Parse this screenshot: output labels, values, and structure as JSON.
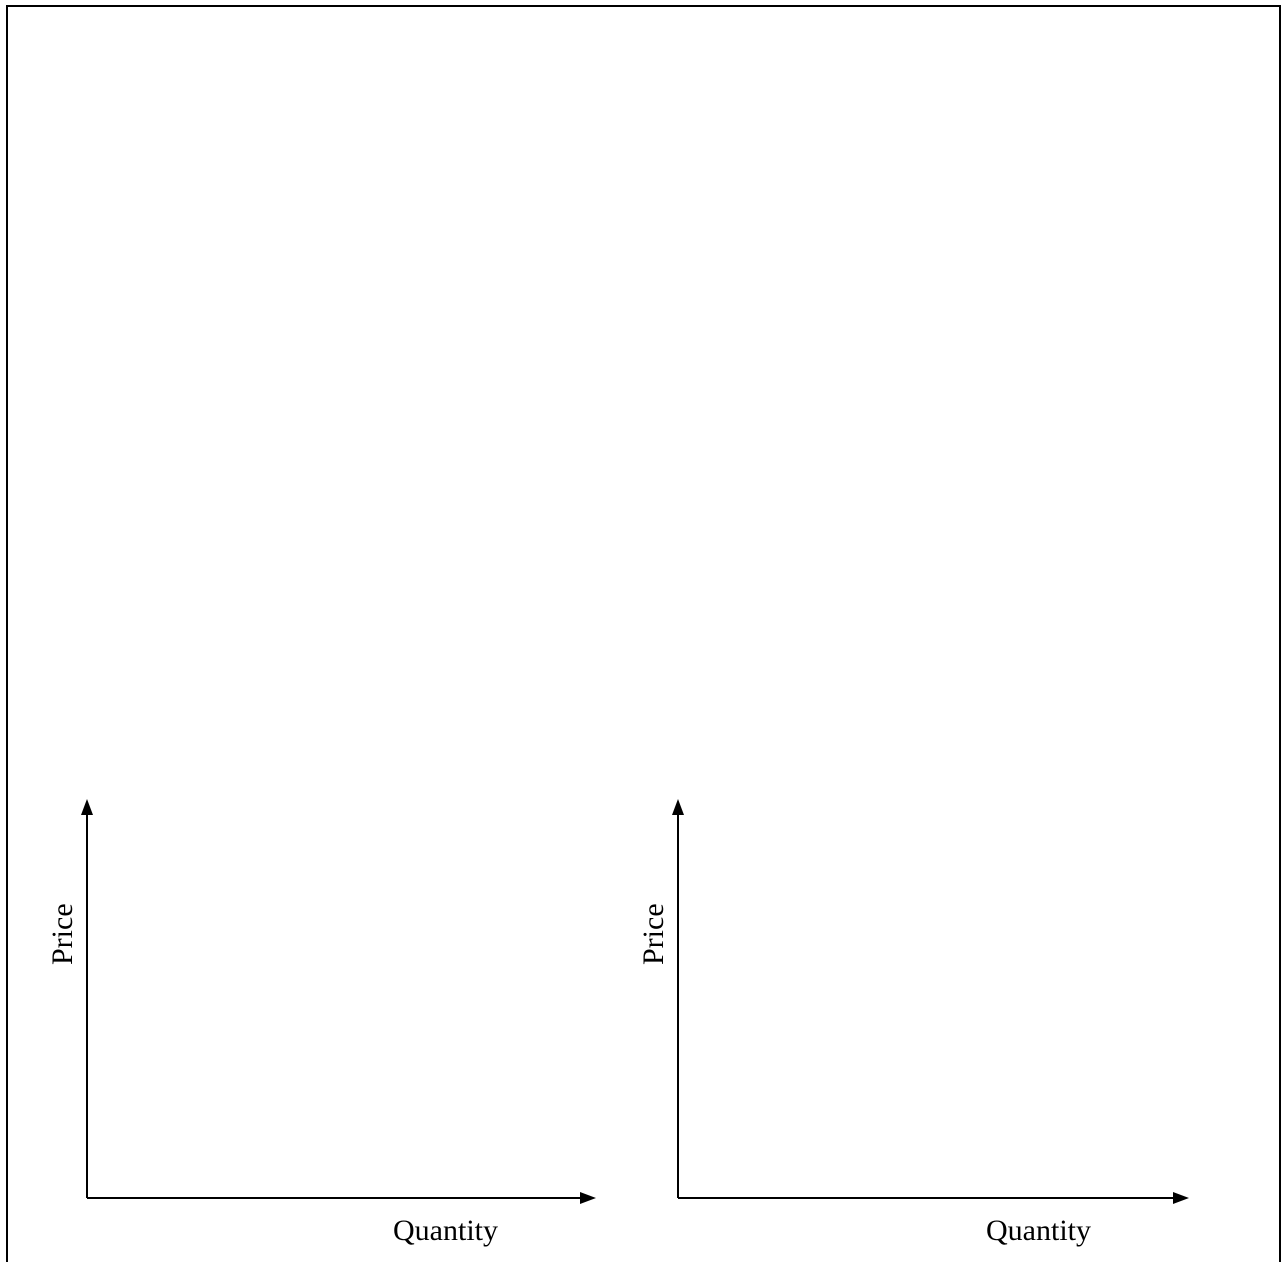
{
  "graphs": [
    {
      "y_axis_label": "Price",
      "x_axis_label": "Quantity"
    },
    {
      "y_axis_label": "Price",
      "x_axis_label": "Quantity"
    }
  ],
  "colors": {
    "ink": "#000000",
    "background": "#ffffff"
  }
}
